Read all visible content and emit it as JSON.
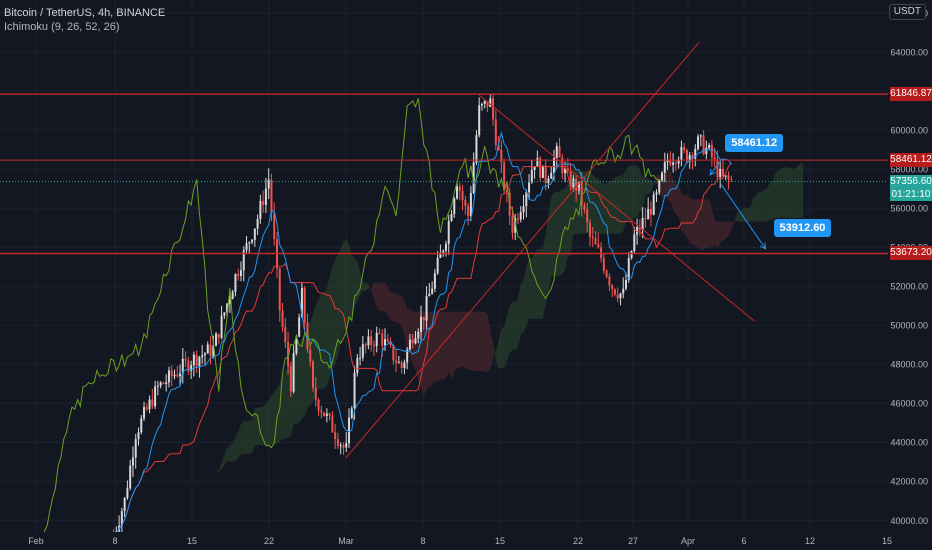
{
  "legend": {
    "symbol": "Bitcoin / TetherUS, 4h, BINANCE",
    "indicator": "Ichimoku (9, 26, 52, 26)"
  },
  "currency": "USDT",
  "colors": {
    "background": "#131722",
    "grid": "#1e2230",
    "up": "#d9d9d9",
    "down": "#ef5350",
    "conversion": "#2196f3",
    "base": "#e53935",
    "lagging": "#6aa121",
    "cloud_bull": "#2e4a2e",
    "cloud_bear": "#5a2a2f",
    "level": "#c62828",
    "badge": "#2196f3",
    "last_price": "#26a69a"
  },
  "chart_data": {
    "type": "candlestick",
    "ylim": [
      39000,
      66000
    ],
    "y_ticks": [
      "40000.00",
      "42000.00",
      "44000.00",
      "46000.00",
      "48000.00",
      "50000.00",
      "52000.00",
      "54000.00",
      "56000.00",
      "58000.00",
      "60000.00",
      "62000.00",
      "64000.00",
      "66000.00"
    ],
    "x_ticks": [
      "Feb",
      "8",
      "15",
      "22",
      "Mar",
      "8",
      "15",
      "22",
      "27",
      "Apr",
      "6",
      "12",
      "15"
    ],
    "horizontal_levels": [
      61846.87,
      58461.12,
      53673.2
    ],
    "last_price": {
      "value": "57356.60",
      "countdown": "01:21:10"
    },
    "level_labels": [
      "61846.87",
      "58461.12",
      "53673.20"
    ],
    "annotations": [
      {
        "label": "58461.12",
        "points": [
          {
            "x": "Apr 4",
            "y": 58461.12
          },
          {
            "x": "Apr 3",
            "y": 57700
          }
        ]
      },
      {
        "label": "53912.60",
        "points": [
          {
            "x": "Apr 4",
            "y": 57200
          },
          {
            "x": "Apr 8",
            "y": 53912.6
          }
        ]
      }
    ],
    "trend_lines": [
      {
        "from": {
          "x": "Mar 1",
          "y": 43200
        },
        "to": {
          "x": "Apr 2",
          "y": 64500
        }
      },
      {
        "from": {
          "x": "Mar 13",
          "y": 61800
        },
        "to": {
          "x": "Apr 7",
          "y": 50200
        }
      }
    ],
    "price_path": [
      {
        "x": "Feb 8",
        "y": 39200
      },
      {
        "x": "Feb 9",
        "y": 41000
      },
      {
        "x": "Feb 10",
        "y": 44500
      },
      {
        "x": "Feb 12",
        "y": 46800
      },
      {
        "x": "Feb 15",
        "y": 48200
      },
      {
        "x": "Feb 17",
        "y": 48800
      },
      {
        "x": "Feb 19",
        "y": 52500
      },
      {
        "x": "Feb 21",
        "y": 55500
      },
      {
        "x": "Feb 22",
        "y": 57500
      },
      {
        "x": "Feb 23",
        "y": 50800
      },
      {
        "x": "Feb 24",
        "y": 47000
      },
      {
        "x": "Feb 25",
        "y": 51500
      },
      {
        "x": "Feb 26",
        "y": 46500
      },
      {
        "x": "Feb 28",
        "y": 44500
      },
      {
        "x": "Mar 1",
        "y": 43500
      },
      {
        "x": "Mar 2",
        "y": 48500
      },
      {
        "x": "Mar 4",
        "y": 49500
      },
      {
        "x": "Mar 6",
        "y": 47800
      },
      {
        "x": "Mar 7",
        "y": 49500
      },
      {
        "x": "Mar 8",
        "y": 50500
      },
      {
        "x": "Mar 10",
        "y": 54500
      },
      {
        "x": "Mar 11",
        "y": 57500
      },
      {
        "x": "Mar 12",
        "y": 55500
      },
      {
        "x": "Mar 13",
        "y": 61000
      },
      {
        "x": "Mar 14",
        "y": 61500
      },
      {
        "x": "Mar 15",
        "y": 58000
      },
      {
        "x": "Mar 16",
        "y": 55000
      },
      {
        "x": "Mar 17",
        "y": 56500
      },
      {
        "x": "Mar 18",
        "y": 58500
      },
      {
        "x": "Mar 19",
        "y": 57500
      },
      {
        "x": "Mar 20",
        "y": 58800
      },
      {
        "x": "Mar 21",
        "y": 57500
      },
      {
        "x": "Mar 22",
        "y": 57000
      },
      {
        "x": "Mar 23",
        "y": 54500
      },
      {
        "x": "Mar 24",
        "y": 53500
      },
      {
        "x": "Mar 25",
        "y": 52000
      },
      {
        "x": "Mar 26",
        "y": 51500
      },
      {
        "x": "Mar 27",
        "y": 54500
      },
      {
        "x": "Mar 28",
        "y": 55500
      },
      {
        "x": "Mar 29",
        "y": 56500
      },
      {
        "x": "Mar 30",
        "y": 58500
      },
      {
        "x": "Mar 31",
        "y": 58800
      },
      {
        "x": "Apr 1",
        "y": 58700
      },
      {
        "x": "Apr 2",
        "y": 59400
      },
      {
        "x": "Apr 3",
        "y": 58800
      },
      {
        "x": "Apr 4",
        "y": 57500
      },
      {
        "x": "Apr 5",
        "y": 57356
      }
    ]
  }
}
